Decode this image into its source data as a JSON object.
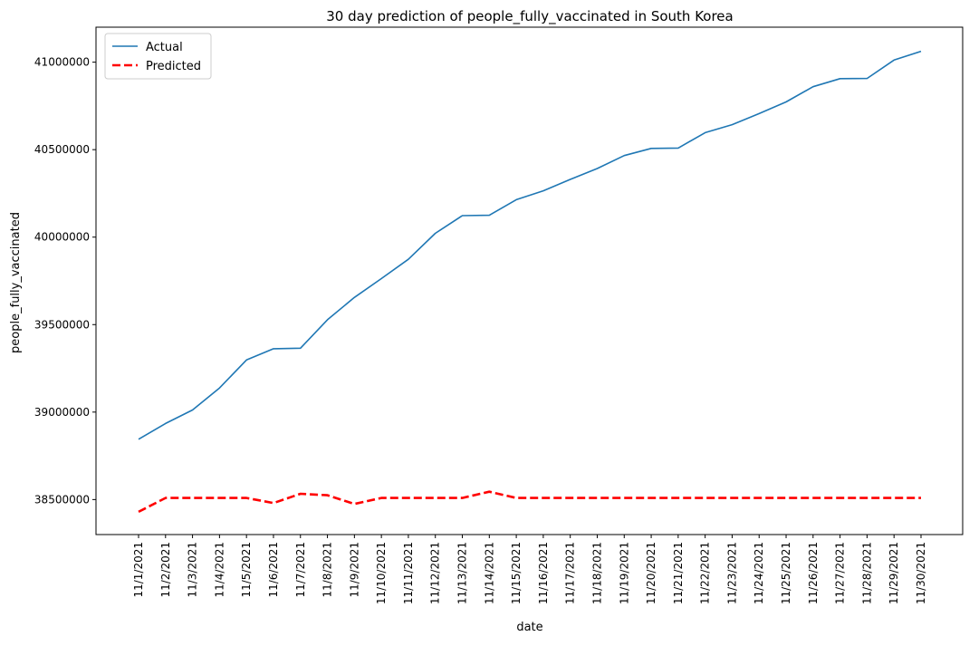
{
  "chart_data": {
    "type": "line",
    "title": "30 day prediction of people_fully_vaccinated in South Korea",
    "xlabel": "date",
    "ylabel": "people_fully_vaccinated",
    "categories": [
      "11/1/2021",
      "11/2/2021",
      "11/3/2021",
      "11/4/2021",
      "11/5/2021",
      "11/6/2021",
      "11/7/2021",
      "11/8/2021",
      "11/9/2021",
      "11/10/2021",
      "11/11/2021",
      "11/12/2021",
      "11/13/2021",
      "11/14/2021",
      "11/15/2021",
      "11/16/2021",
      "11/17/2021",
      "11/18/2021",
      "11/19/2021",
      "11/20/2021",
      "11/21/2021",
      "11/22/2021",
      "11/23/2021",
      "11/24/2021",
      "11/25/2021",
      "11/26/2021",
      "11/27/2021",
      "11/28/2021",
      "11/29/2021",
      "11/30/2021"
    ],
    "ylim": [
      38300000,
      41200000
    ],
    "yticks": [
      38500000,
      39000000,
      39500000,
      40000000,
      40500000,
      41000000
    ],
    "legend_position": "top-left",
    "grid": false,
    "series": [
      {
        "name": "Actual",
        "color": "#1f77b4",
        "style": "solid",
        "values": [
          38845000,
          38935000,
          39012000,
          39138000,
          39298000,
          39362000,
          39365000,
          39528000,
          39655000,
          39763000,
          39873000,
          40022000,
          40123000,
          40125000,
          40214000,
          40265000,
          40330000,
          40392000,
          40466000,
          40507000,
          40509000,
          40597000,
          40643000,
          40706000,
          40773000,
          40860000,
          40906000,
          40907000,
          41012000,
          41062000
        ]
      },
      {
        "name": "Predicted",
        "color": "#ff0000",
        "style": "dashed",
        "values": [
          38430000,
          38509000,
          38509000,
          38509000,
          38509000,
          38480000,
          38533000,
          38525000,
          38475000,
          38509000,
          38509000,
          38509000,
          38509000,
          38545000,
          38509000,
          38509000,
          38509000,
          38509000,
          38509000,
          38509000,
          38509000,
          38509000,
          38509000,
          38509000,
          38509000,
          38509000,
          38509000,
          38509000,
          38509000,
          38509000
        ]
      }
    ]
  }
}
